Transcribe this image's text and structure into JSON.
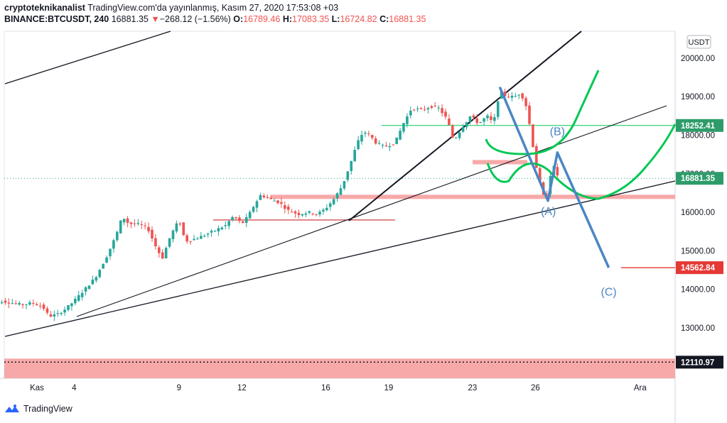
{
  "header": {
    "author": "cryptoteknikanalist",
    "published": "TradingView.com'da yayınlanmış, Kasım 27, 2020 17:53:08 +03",
    "symbol": "BINANCE:BTCUSDT, 240",
    "last": "16881.35",
    "change_arrow": "▼",
    "change": "−268.12 (−1.56%)",
    "o_label": "O:",
    "o_value": "16789.46",
    "h_label": "H:",
    "h_value": "17083.35",
    "l_label": "L:",
    "l_value": "16724.82",
    "c_label": "C:",
    "c_value": "16881.35"
  },
  "footer": {
    "brand": "TradingView"
  },
  "colors": {
    "up": "#26a69a",
    "down": "#ef5350",
    "green_level": "#00c853",
    "wave_blue": "#4a86c5",
    "zone": "#f7a9a9",
    "label_green": "#2e9c6a"
  },
  "chart_data": {
    "type": "candlestick",
    "currency": "USDT",
    "ylim": [
      12000,
      20600
    ],
    "y_ticks": [
      {
        "value": 20000,
        "label": "20000.00"
      },
      {
        "value": 19000,
        "label": "19000.00"
      },
      {
        "value": 18000,
        "label": "18000.00"
      },
      {
        "value": 17000,
        "label": "17000.00"
      },
      {
        "value": 16000,
        "label": "16000.00"
      },
      {
        "value": 15000,
        "label": "15000.00"
      },
      {
        "value": 14000,
        "label": "14000.00"
      },
      {
        "value": 13000,
        "label": "13000.00"
      }
    ],
    "x_ticks": [
      {
        "day": 1,
        "label": "Kas"
      },
      {
        "day": 4,
        "label": "4"
      },
      {
        "day": 9,
        "label": "9"
      },
      {
        "day": 12,
        "label": "12"
      },
      {
        "day": 16,
        "label": "16"
      },
      {
        "day": 19,
        "label": "19"
      },
      {
        "day": 23,
        "label": "23"
      },
      {
        "day": 26,
        "label": "26"
      },
      {
        "day": 31,
        "label": "Ara"
      }
    ],
    "price_labels": [
      {
        "value": 18252.41,
        "label": "18252.41",
        "color": "#2e9c6a"
      },
      {
        "value": 16881.35,
        "label": "16881.35",
        "color": "#2e9c6a"
      },
      {
        "value": 14562.84,
        "label": "14562.84",
        "color": "#e53935"
      },
      {
        "value": 12110.97,
        "label": "12110.97",
        "color": "#131722"
      }
    ],
    "path": [
      [
        0.0,
        13400
      ],
      [
        0.5,
        13700
      ],
      [
        1.0,
        13650
      ],
      [
        1.5,
        13600
      ],
      [
        2.0,
        13650
      ],
      [
        2.5,
        13550
      ],
      [
        2.8,
        13300
      ],
      [
        3.2,
        13350
      ],
      [
        3.6,
        13500
      ],
      [
        4.0,
        13700
      ],
      [
        4.5,
        14000
      ],
      [
        5.0,
        14300
      ],
      [
        5.5,
        14800
      ],
      [
        6.0,
        15400
      ],
      [
        6.3,
        15900
      ],
      [
        6.6,
        15700
      ],
      [
        7.0,
        15700
      ],
      [
        7.5,
        15600
      ],
      [
        7.9,
        15100
      ],
      [
        8.2,
        14800
      ],
      [
        8.6,
        15400
      ],
      [
        9.0,
        15800
      ],
      [
        9.3,
        15250
      ],
      [
        9.7,
        15300
      ],
      [
        10.2,
        15400
      ],
      [
        10.8,
        15550
      ],
      [
        11.2,
        15650
      ],
      [
        11.6,
        15900
      ],
      [
        12.0,
        15700
      ],
      [
        12.3,
        15900
      ],
      [
        12.6,
        16200
      ],
      [
        12.9,
        16450
      ],
      [
        13.3,
        16350
      ],
      [
        13.8,
        16250
      ],
      [
        14.2,
        16050
      ],
      [
        14.7,
        15950
      ],
      [
        15.2,
        16000
      ],
      [
        15.6,
        15950
      ],
      [
        16.0,
        16100
      ],
      [
        16.4,
        16350
      ],
      [
        16.8,
        16700
      ],
      [
        17.2,
        17300
      ],
      [
        17.5,
        17800
      ],
      [
        17.8,
        18100
      ],
      [
        18.1,
        18000
      ],
      [
        18.4,
        17800
      ],
      [
        18.8,
        17700
      ],
      [
        19.3,
        17800
      ],
      [
        19.7,
        18300
      ],
      [
        20.1,
        18700
      ],
      [
        20.6,
        18650
      ],
      [
        21.0,
        18750
      ],
      [
        21.4,
        18700
      ],
      [
        21.8,
        18400
      ],
      [
        22.1,
        17850
      ],
      [
        22.5,
        18200
      ],
      [
        22.9,
        18500
      ],
      [
        23.3,
        18300
      ],
      [
        23.7,
        18500
      ],
      [
        24.0,
        18300
      ],
      [
        24.3,
        19150
      ],
      [
        24.6,
        19000
      ],
      [
        25.0,
        19000
      ],
      [
        25.3,
        19100
      ],
      [
        25.6,
        18700
      ],
      [
        25.8,
        18000
      ],
      [
        26.1,
        17000
      ],
      [
        26.4,
        16400
      ],
      [
        26.6,
        16500
      ],
      [
        26.8,
        17300
      ],
      [
        27.0,
        17000
      ],
      [
        27.2,
        16850
      ]
    ],
    "annotations": {
      "wave_labels": [
        {
          "text": "(A)",
          "day": 26.62,
          "price": 15930
        },
        {
          "text": "(B)",
          "day": 27.05,
          "price": 18000
        },
        {
          "text": "(C)",
          "day": 29.5,
          "price": 13840
        }
      ],
      "wave_path": [
        {
          "day": 24.3,
          "price": 19250
        },
        {
          "day": 26.6,
          "price": 16300
        },
        {
          "day": 27.05,
          "price": 17550
        },
        {
          "day": 29.5,
          "price": 14562.84
        }
      ]
    }
  }
}
